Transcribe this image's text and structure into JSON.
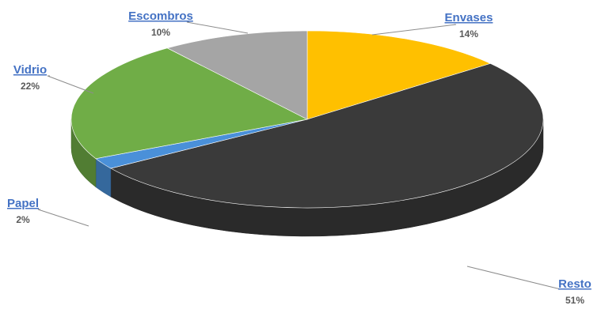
{
  "chart_data": {
    "type": "pie",
    "style": "3d-perspective",
    "legend": "none",
    "slices": [
      {
        "label": "Envases",
        "value": 14,
        "value_label": "14%",
        "color": "#FFC000"
      },
      {
        "label": "Resto",
        "value": 51,
        "value_label": "51%",
        "color": "#3A3A3A"
      },
      {
        "label": "Papel",
        "value": 2,
        "value_label": "2%",
        "color": "#4A90D9"
      },
      {
        "label": "Vidrio",
        "value": 22,
        "value_label": "22%",
        "color": "#70AD47"
      },
      {
        "label": "Escombros",
        "value": 10,
        "value_label": "10%",
        "color": "#A5A5A5"
      }
    ],
    "label_color": "#4472C4"
  }
}
